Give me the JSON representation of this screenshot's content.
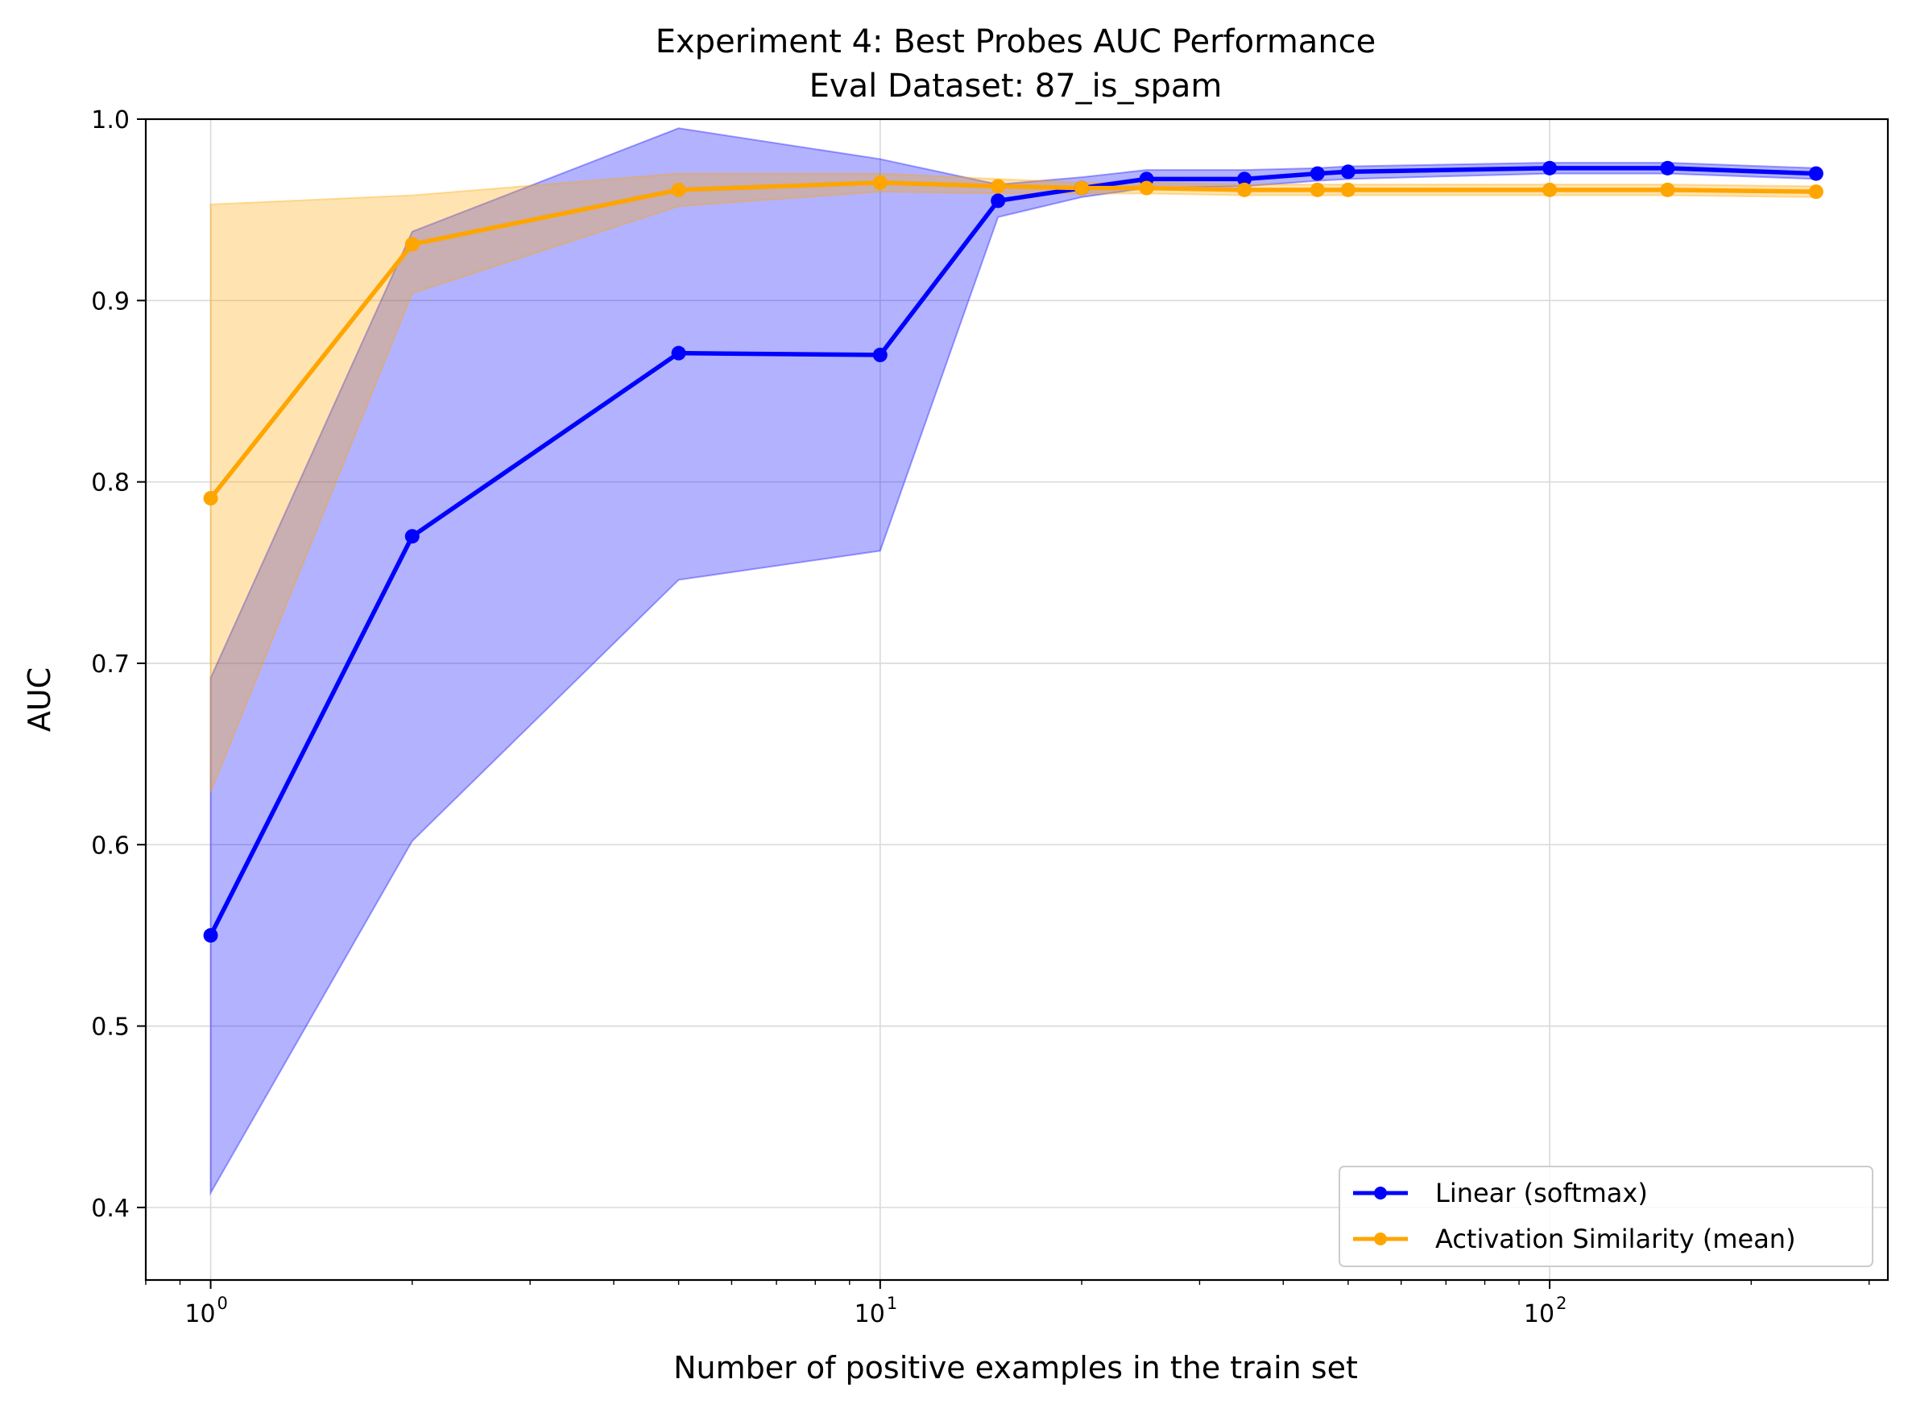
{
  "chart_data": {
    "type": "line",
    "title": "Experiment 4: Best Probes AUC Performance",
    "subtitle": "Eval Dataset: 87_is_spam",
    "xlabel": "Number of positive examples in the train set",
    "ylabel": "AUC",
    "xscale": "log",
    "xlim": [
      0.8,
      320
    ],
    "ylim": [
      0.36,
      1.0
    ],
    "xticks": [
      {
        "base": "10",
        "exp": "0",
        "value": 1
      },
      {
        "base": "10",
        "exp": "1",
        "value": 10
      },
      {
        "base": "10",
        "exp": "2",
        "value": 100
      }
    ],
    "yticks": [
      "0.4",
      "0.5",
      "0.6",
      "0.7",
      "0.8",
      "0.9",
      "1.0"
    ],
    "grid": true,
    "legend_position": "lower-right",
    "series": [
      {
        "name": "Linear (softmax)",
        "color": "#0000ff",
        "fill_color": "#0000ff",
        "x": [
          1,
          2,
          5,
          10,
          15,
          20,
          25,
          35,
          45,
          50,
          100,
          150,
          250
        ],
        "y": [
          0.55,
          0.77,
          0.871,
          0.87,
          0.955,
          0.962,
          0.967,
          0.967,
          0.97,
          0.971,
          0.973,
          0.973,
          0.97
        ],
        "lower": [
          0.408,
          0.602,
          0.746,
          0.762,
          0.946,
          0.957,
          0.962,
          0.963,
          0.966,
          0.967,
          0.97,
          0.97,
          0.967
        ],
        "upper": [
          0.692,
          0.938,
          0.995,
          0.978,
          0.964,
          0.968,
          0.972,
          0.972,
          0.973,
          0.974,
          0.976,
          0.976,
          0.973
        ]
      },
      {
        "name": "Activation Similarity (mean)",
        "color": "#ffa500",
        "fill_color": "#ffa500",
        "x": [
          1,
          2,
          5,
          10,
          15,
          20,
          25,
          35,
          45,
          50,
          100,
          150,
          250
        ],
        "y": [
          0.791,
          0.931,
          0.961,
          0.965,
          0.963,
          0.962,
          0.962,
          0.961,
          0.961,
          0.961,
          0.961,
          0.961,
          0.96
        ],
        "lower": [
          0.629,
          0.904,
          0.952,
          0.96,
          0.959,
          0.959,
          0.959,
          0.958,
          0.958,
          0.958,
          0.958,
          0.958,
          0.957
        ],
        "upper": [
          0.953,
          0.958,
          0.97,
          0.97,
          0.967,
          0.965,
          0.965,
          0.964,
          0.964,
          0.964,
          0.964,
          0.964,
          0.963
        ]
      }
    ]
  }
}
